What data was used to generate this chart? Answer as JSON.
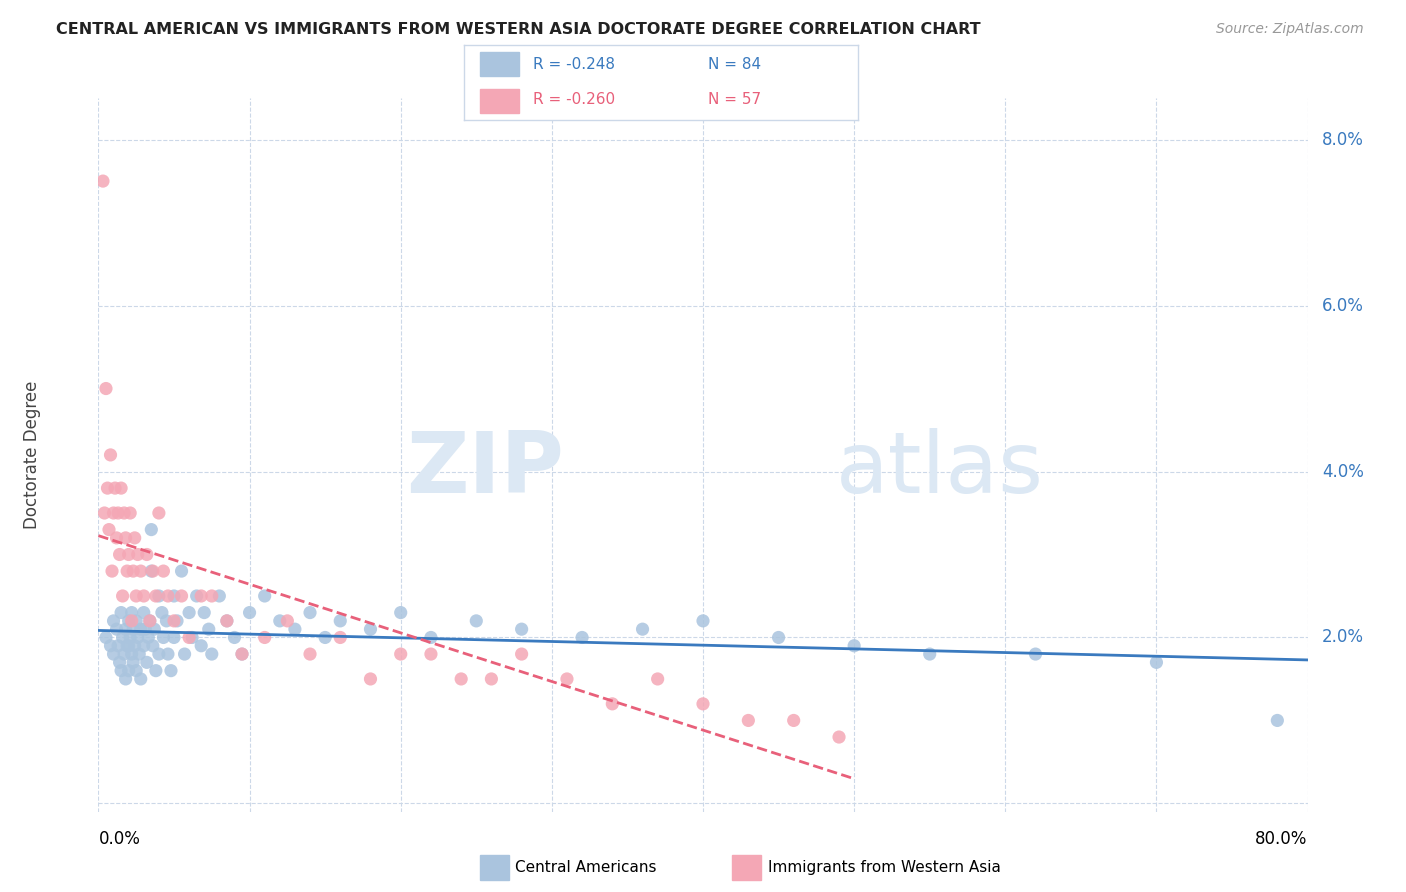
{
  "title": "CENTRAL AMERICAN VS IMMIGRANTS FROM WESTERN ASIA DOCTORATE DEGREE CORRELATION CHART",
  "source": "Source: ZipAtlas.com",
  "ylabel": "Doctorate Degree",
  "xmin": 0.0,
  "xmax": 0.8,
  "ymin": -0.001,
  "ymax": 0.085,
  "legend_blue_R": "R = -0.248",
  "legend_blue_N": "N = 84",
  "legend_pink_R": "R = -0.260",
  "legend_pink_N": "N = 57",
  "legend_label_blue": "Central Americans",
  "legend_label_pink": "Immigrants from Western Asia",
  "blue_color": "#aac4de",
  "pink_color": "#f4a7b5",
  "trendline_blue_color": "#3a7abf",
  "trendline_pink_color": "#e8607a",
  "watermark_zip": "ZIP",
  "watermark_atlas": "atlas",
  "grid_color": "#ccd8e8",
  "background_color": "#ffffff",
  "watermark_color": "#dce8f4",
  "R_color": "#3a7abf",
  "N_color": "#3a7abf",
  "R_pink_color": "#e8607a",
  "N_pink_color": "#e8607a",
  "blue_scatter_x": [
    0.005,
    0.008,
    0.01,
    0.01,
    0.012,
    0.013,
    0.014,
    0.015,
    0.015,
    0.016,
    0.017,
    0.018,
    0.018,
    0.019,
    0.02,
    0.02,
    0.02,
    0.021,
    0.022,
    0.022,
    0.023,
    0.023,
    0.024,
    0.025,
    0.025,
    0.026,
    0.027,
    0.028,
    0.028,
    0.03,
    0.03,
    0.031,
    0.032,
    0.033,
    0.034,
    0.035,
    0.035,
    0.036,
    0.037,
    0.038,
    0.04,
    0.04,
    0.042,
    0.043,
    0.045,
    0.046,
    0.048,
    0.05,
    0.05,
    0.052,
    0.055,
    0.057,
    0.06,
    0.062,
    0.065,
    0.068,
    0.07,
    0.073,
    0.075,
    0.08,
    0.085,
    0.09,
    0.095,
    0.1,
    0.11,
    0.12,
    0.13,
    0.14,
    0.15,
    0.16,
    0.18,
    0.2,
    0.22,
    0.25,
    0.28,
    0.32,
    0.36,
    0.4,
    0.45,
    0.5,
    0.55,
    0.62,
    0.7,
    0.78
  ],
  "blue_scatter_y": [
    0.02,
    0.019,
    0.022,
    0.018,
    0.021,
    0.019,
    0.017,
    0.023,
    0.016,
    0.02,
    0.018,
    0.021,
    0.015,
    0.019,
    0.022,
    0.019,
    0.016,
    0.02,
    0.023,
    0.018,
    0.021,
    0.017,
    0.019,
    0.022,
    0.016,
    0.02,
    0.018,
    0.021,
    0.015,
    0.023,
    0.019,
    0.021,
    0.017,
    0.02,
    0.022,
    0.033,
    0.028,
    0.019,
    0.021,
    0.016,
    0.025,
    0.018,
    0.023,
    0.02,
    0.022,
    0.018,
    0.016,
    0.025,
    0.02,
    0.022,
    0.028,
    0.018,
    0.023,
    0.02,
    0.025,
    0.019,
    0.023,
    0.021,
    0.018,
    0.025,
    0.022,
    0.02,
    0.018,
    0.023,
    0.025,
    0.022,
    0.021,
    0.023,
    0.02,
    0.022,
    0.021,
    0.023,
    0.02,
    0.022,
    0.021,
    0.02,
    0.021,
    0.022,
    0.02,
    0.019,
    0.018,
    0.018,
    0.017,
    0.01
  ],
  "pink_scatter_x": [
    0.003,
    0.004,
    0.005,
    0.006,
    0.007,
    0.008,
    0.009,
    0.01,
    0.011,
    0.012,
    0.013,
    0.014,
    0.015,
    0.016,
    0.017,
    0.018,
    0.019,
    0.02,
    0.021,
    0.022,
    0.023,
    0.024,
    0.025,
    0.026,
    0.028,
    0.03,
    0.032,
    0.034,
    0.036,
    0.038,
    0.04,
    0.043,
    0.046,
    0.05,
    0.055,
    0.06,
    0.068,
    0.075,
    0.085,
    0.095,
    0.11,
    0.125,
    0.14,
    0.16,
    0.18,
    0.2,
    0.22,
    0.24,
    0.26,
    0.28,
    0.31,
    0.34,
    0.37,
    0.4,
    0.43,
    0.46,
    0.49
  ],
  "pink_scatter_y": [
    0.075,
    0.035,
    0.05,
    0.038,
    0.033,
    0.042,
    0.028,
    0.035,
    0.038,
    0.032,
    0.035,
    0.03,
    0.038,
    0.025,
    0.035,
    0.032,
    0.028,
    0.03,
    0.035,
    0.022,
    0.028,
    0.032,
    0.025,
    0.03,
    0.028,
    0.025,
    0.03,
    0.022,
    0.028,
    0.025,
    0.035,
    0.028,
    0.025,
    0.022,
    0.025,
    0.02,
    0.025,
    0.025,
    0.022,
    0.018,
    0.02,
    0.022,
    0.018,
    0.02,
    0.015,
    0.018,
    0.018,
    0.015,
    0.015,
    0.018,
    0.015,
    0.012,
    0.015,
    0.012,
    0.01,
    0.01,
    0.008
  ],
  "ytick_vals": [
    0.0,
    0.02,
    0.04,
    0.06,
    0.08
  ],
  "ytick_labels": [
    "",
    "2.0%",
    "4.0%",
    "6.0%",
    "8.0%"
  ],
  "xtick_vals": [
    0.0,
    0.1,
    0.2,
    0.3,
    0.4,
    0.5,
    0.6,
    0.7,
    0.8
  ],
  "xtick_labels": [
    "0.0%",
    "",
    "",
    "",
    "",
    "",
    "",
    "",
    "80.0%"
  ]
}
